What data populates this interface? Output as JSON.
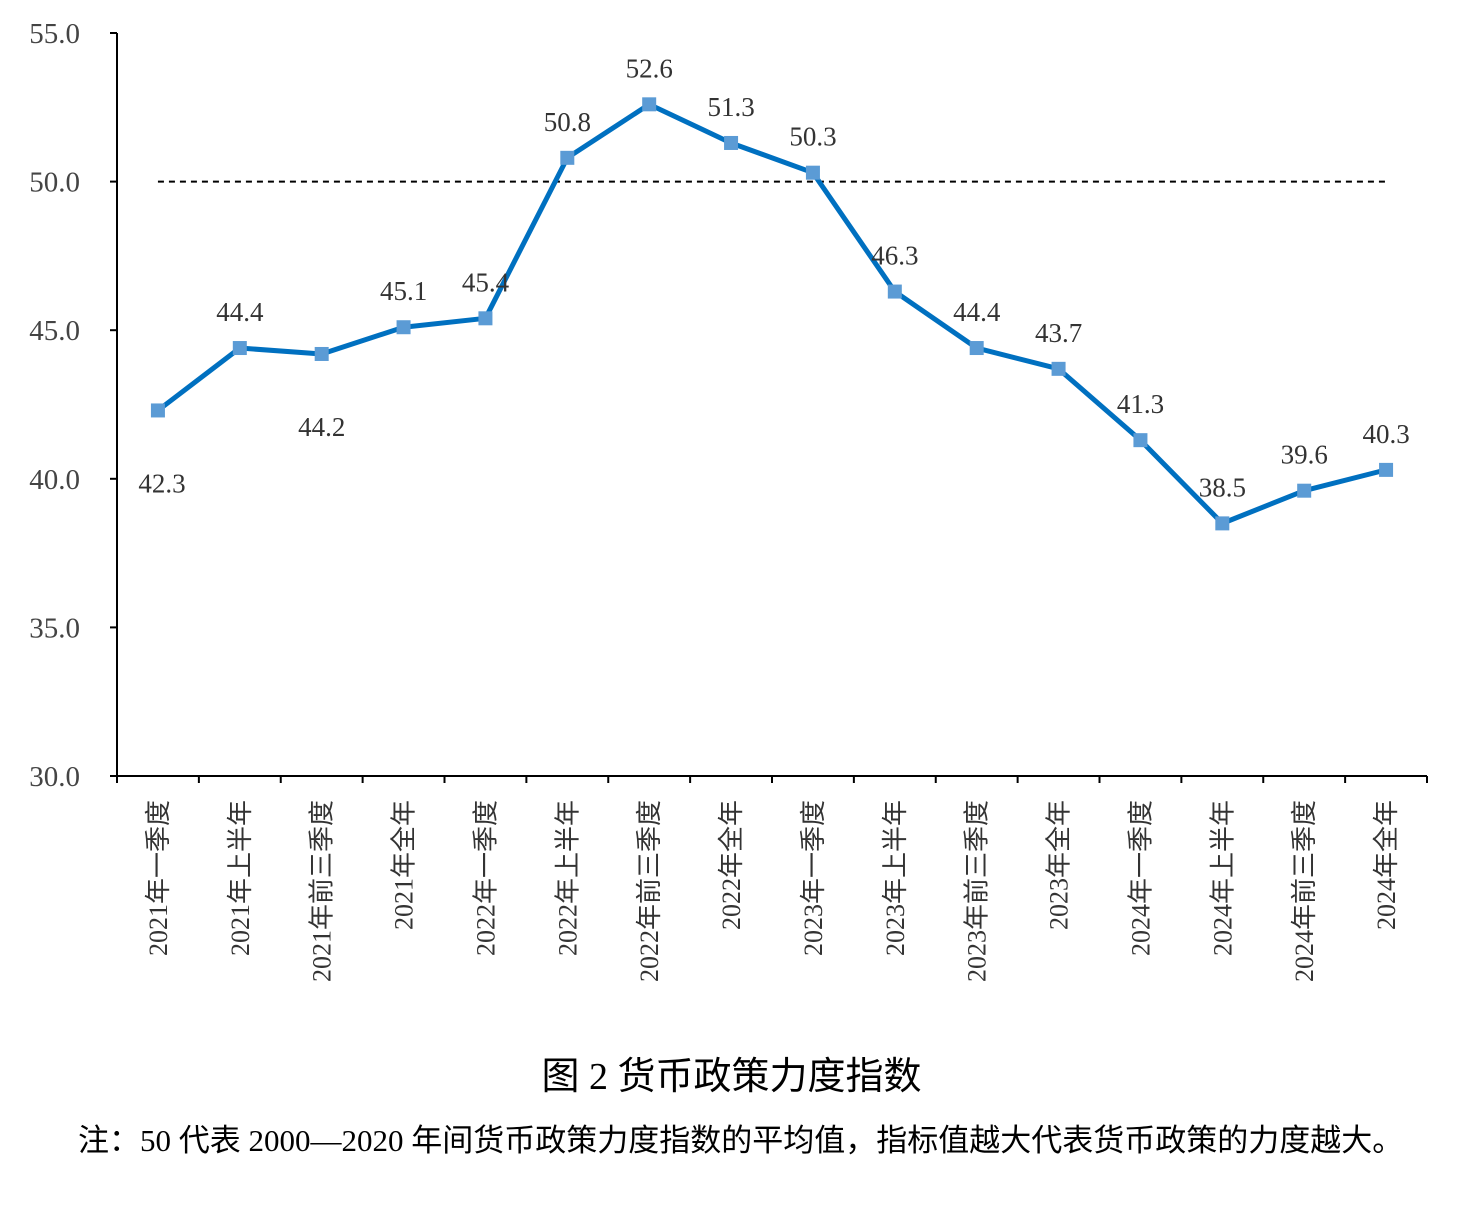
{
  "chart_data": {
    "type": "line",
    "categories": [
      "2021年一季度",
      "2021年上半年",
      "2021年前三季度",
      "2021年全年",
      "2022年一季度",
      "2022年上半年",
      "2022年前三季度",
      "2022年全年",
      "2023年一季度",
      "2023年上半年",
      "2023年前三季度",
      "2023年全年",
      "2024年一季度",
      "2024年上半年",
      "2024年前三季度",
      "2024年全年"
    ],
    "series": [
      {
        "values": [
          42.3,
          44.4,
          44.2,
          45.1,
          45.4,
          50.8,
          52.6,
          51.3,
          50.3,
          46.3,
          44.4,
          43.7,
          41.3,
          38.5,
          39.6,
          40.3
        ]
      }
    ],
    "data_labels": [
      "42.3",
      "44.4",
      "44.2",
      "45.1",
      "45.4",
      "50.8",
      "52.6",
      "51.3",
      "50.3",
      "46.3",
      "44.4",
      "43.7",
      "41.3",
      "38.5",
      "39.6",
      "40.3"
    ],
    "ylim": [
      30,
      55
    ],
    "yticks": [
      "30.0",
      "35.0",
      "40.0",
      "45.0",
      "50.0",
      "55.0"
    ],
    "reference_line": 50,
    "grid": false,
    "colors": {
      "line": "#0070C0",
      "marker": "#5B9BD5",
      "reference": "#000000"
    }
  },
  "caption": "图 2  货币政策力度指数",
  "note": "注：50 代表 2000—2020 年间货币政策力度指数的平均值，指标值越大代表货币政策的力度越大。"
}
